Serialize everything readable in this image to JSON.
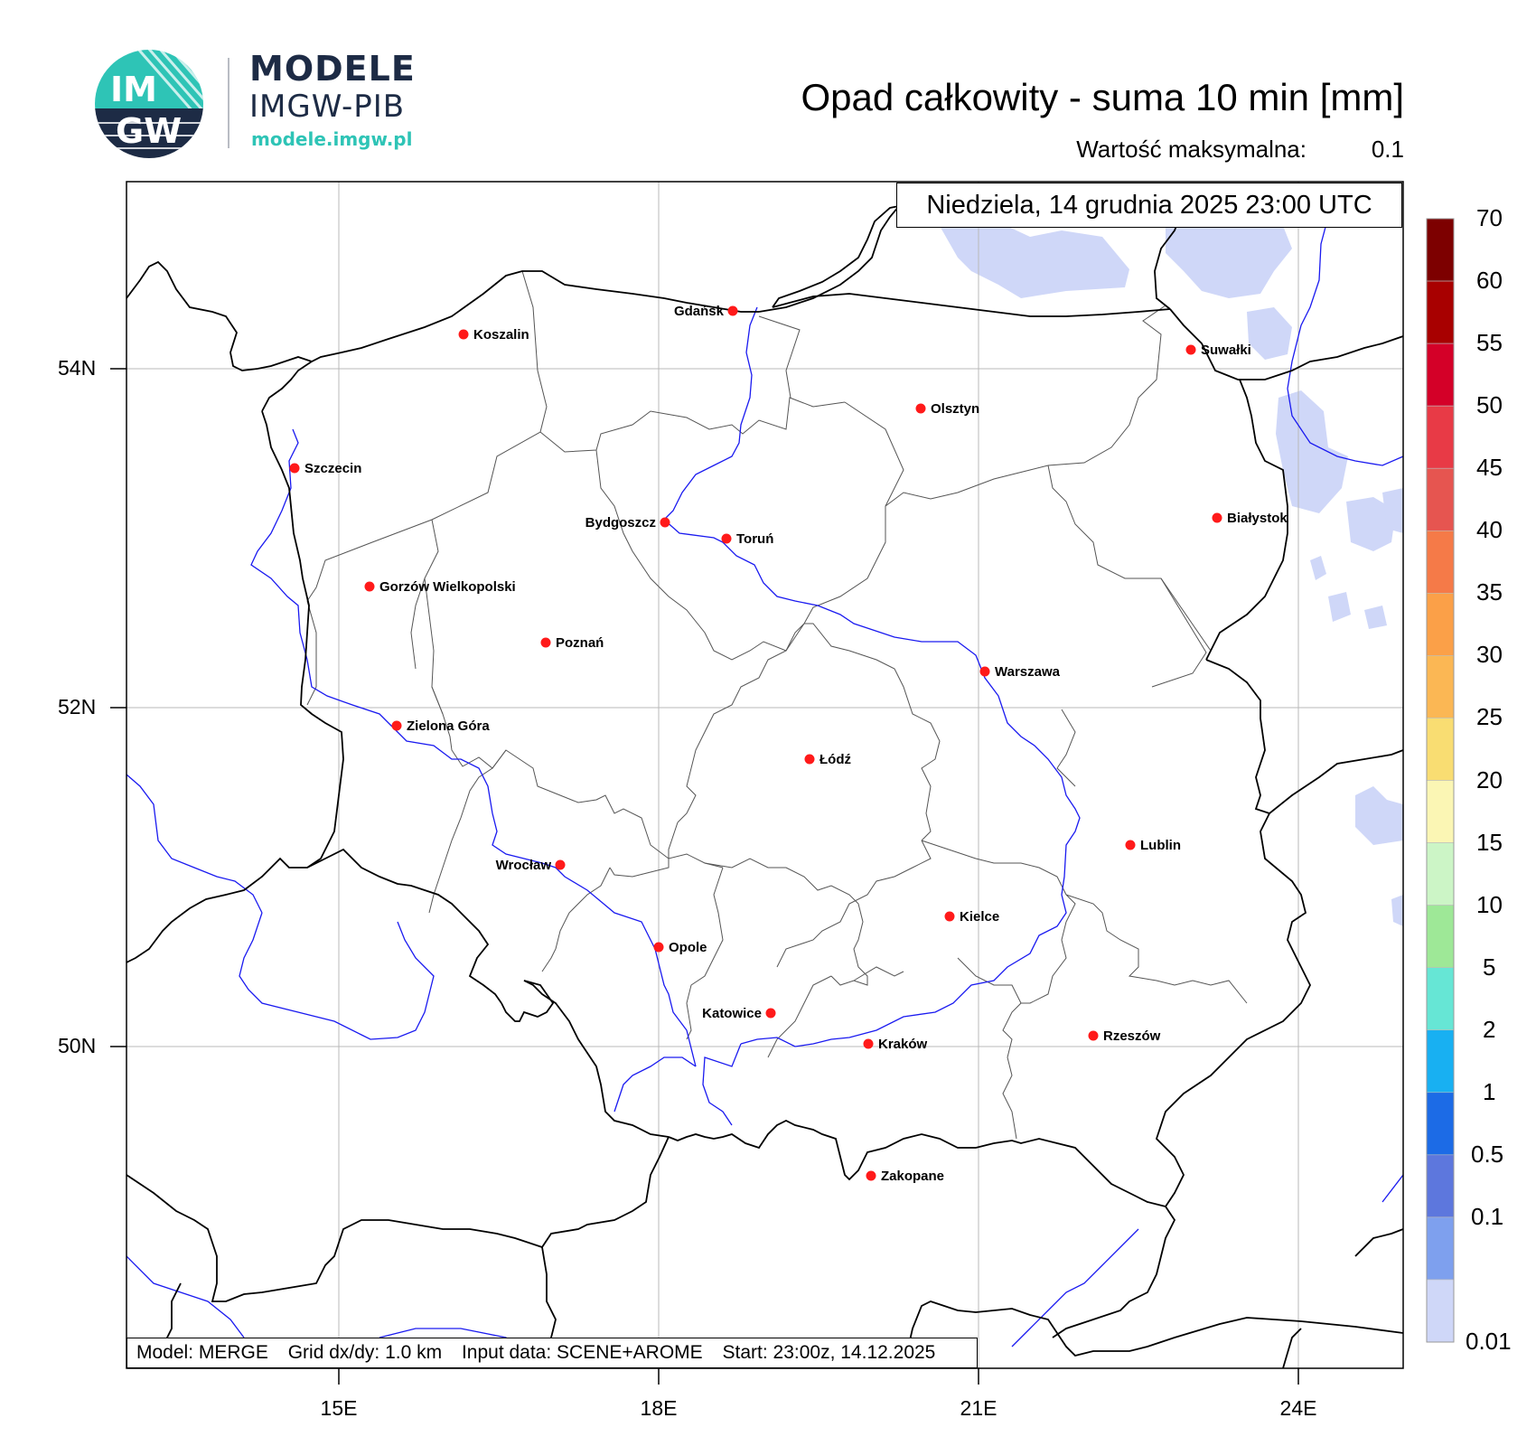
{
  "logo": {
    "circle_text_top": "IM",
    "circle_text_bottom": "GW",
    "title": "MODELE",
    "subtitle": "IMGW-PIB",
    "url": "modele.imgw.pl",
    "colors": {
      "navy": "#1d2b45",
      "teal": "#2ec4b6"
    }
  },
  "header": {
    "title": "Opad całkowity - suma 10 min [mm]",
    "max_label": "Wartość maksymalna:",
    "max_value": "0.1"
  },
  "map": {
    "datetime": "Niedziela, 14 grudnia 2025 23:00 UTC",
    "lat_labels": [
      "54N",
      "52N",
      "50N"
    ],
    "lon_labels": [
      "15E",
      "18E",
      "21E",
      "24E"
    ],
    "cities": [
      {
        "name": "Gdańsk",
        "label_side": "left"
      },
      {
        "name": "Koszalin",
        "label_side": "right"
      },
      {
        "name": "Suwałki",
        "label_side": "right"
      },
      {
        "name": "Olsztyn",
        "label_side": "right"
      },
      {
        "name": "Szczecin",
        "label_side": "right"
      },
      {
        "name": "Białystok",
        "label_side": "right"
      },
      {
        "name": "Bydgoszcz",
        "label_side": "left"
      },
      {
        "name": "Toruń",
        "label_side": "right"
      },
      {
        "name": "Gorzów Wielkopolski",
        "label_side": "right"
      },
      {
        "name": "Poznań",
        "label_side": "right"
      },
      {
        "name": "Warszawa",
        "label_side": "right"
      },
      {
        "name": "Zielona Góra",
        "label_side": "right"
      },
      {
        "name": "Łódź",
        "label_side": "right"
      },
      {
        "name": "Lublin",
        "label_side": "right"
      },
      {
        "name": "Wrocław",
        "label_side": "left"
      },
      {
        "name": "Kielce",
        "label_side": "right"
      },
      {
        "name": "Opole",
        "label_side": "right"
      },
      {
        "name": "Katowice",
        "label_side": "left"
      },
      {
        "name": "Kraków",
        "label_side": "right"
      },
      {
        "name": "Rzeszów",
        "label_side": "right"
      },
      {
        "name": "Zakopane",
        "label_side": "right"
      }
    ]
  },
  "footer": {
    "model": "Model: MERGE",
    "grid": "Grid dx/dy: 1.0 km",
    "input": "Input data: SCENE+AROME",
    "start": "Start: 23:00z, 14.12.2025"
  },
  "colorbar": {
    "levels": [
      "70",
      "60",
      "55",
      "50",
      "45",
      "40",
      "35",
      "30",
      "25",
      "20",
      "15",
      "10",
      "5",
      "2",
      "1",
      "0.5",
      "0.1",
      "0.01"
    ],
    "colors": [
      "#7d0000",
      "#a80000",
      "#d40028",
      "#e83a46",
      "#e65550",
      "#f57a48",
      "#fba048",
      "#fbb754",
      "#f9dd72",
      "#fbf6b4",
      "#ccf5c6",
      "#9ee897",
      "#66e6d5",
      "#18b0f2",
      "#1c6be6",
      "#5d77dd",
      "#7ea0ee",
      "#cfd7f8"
    ]
  }
}
